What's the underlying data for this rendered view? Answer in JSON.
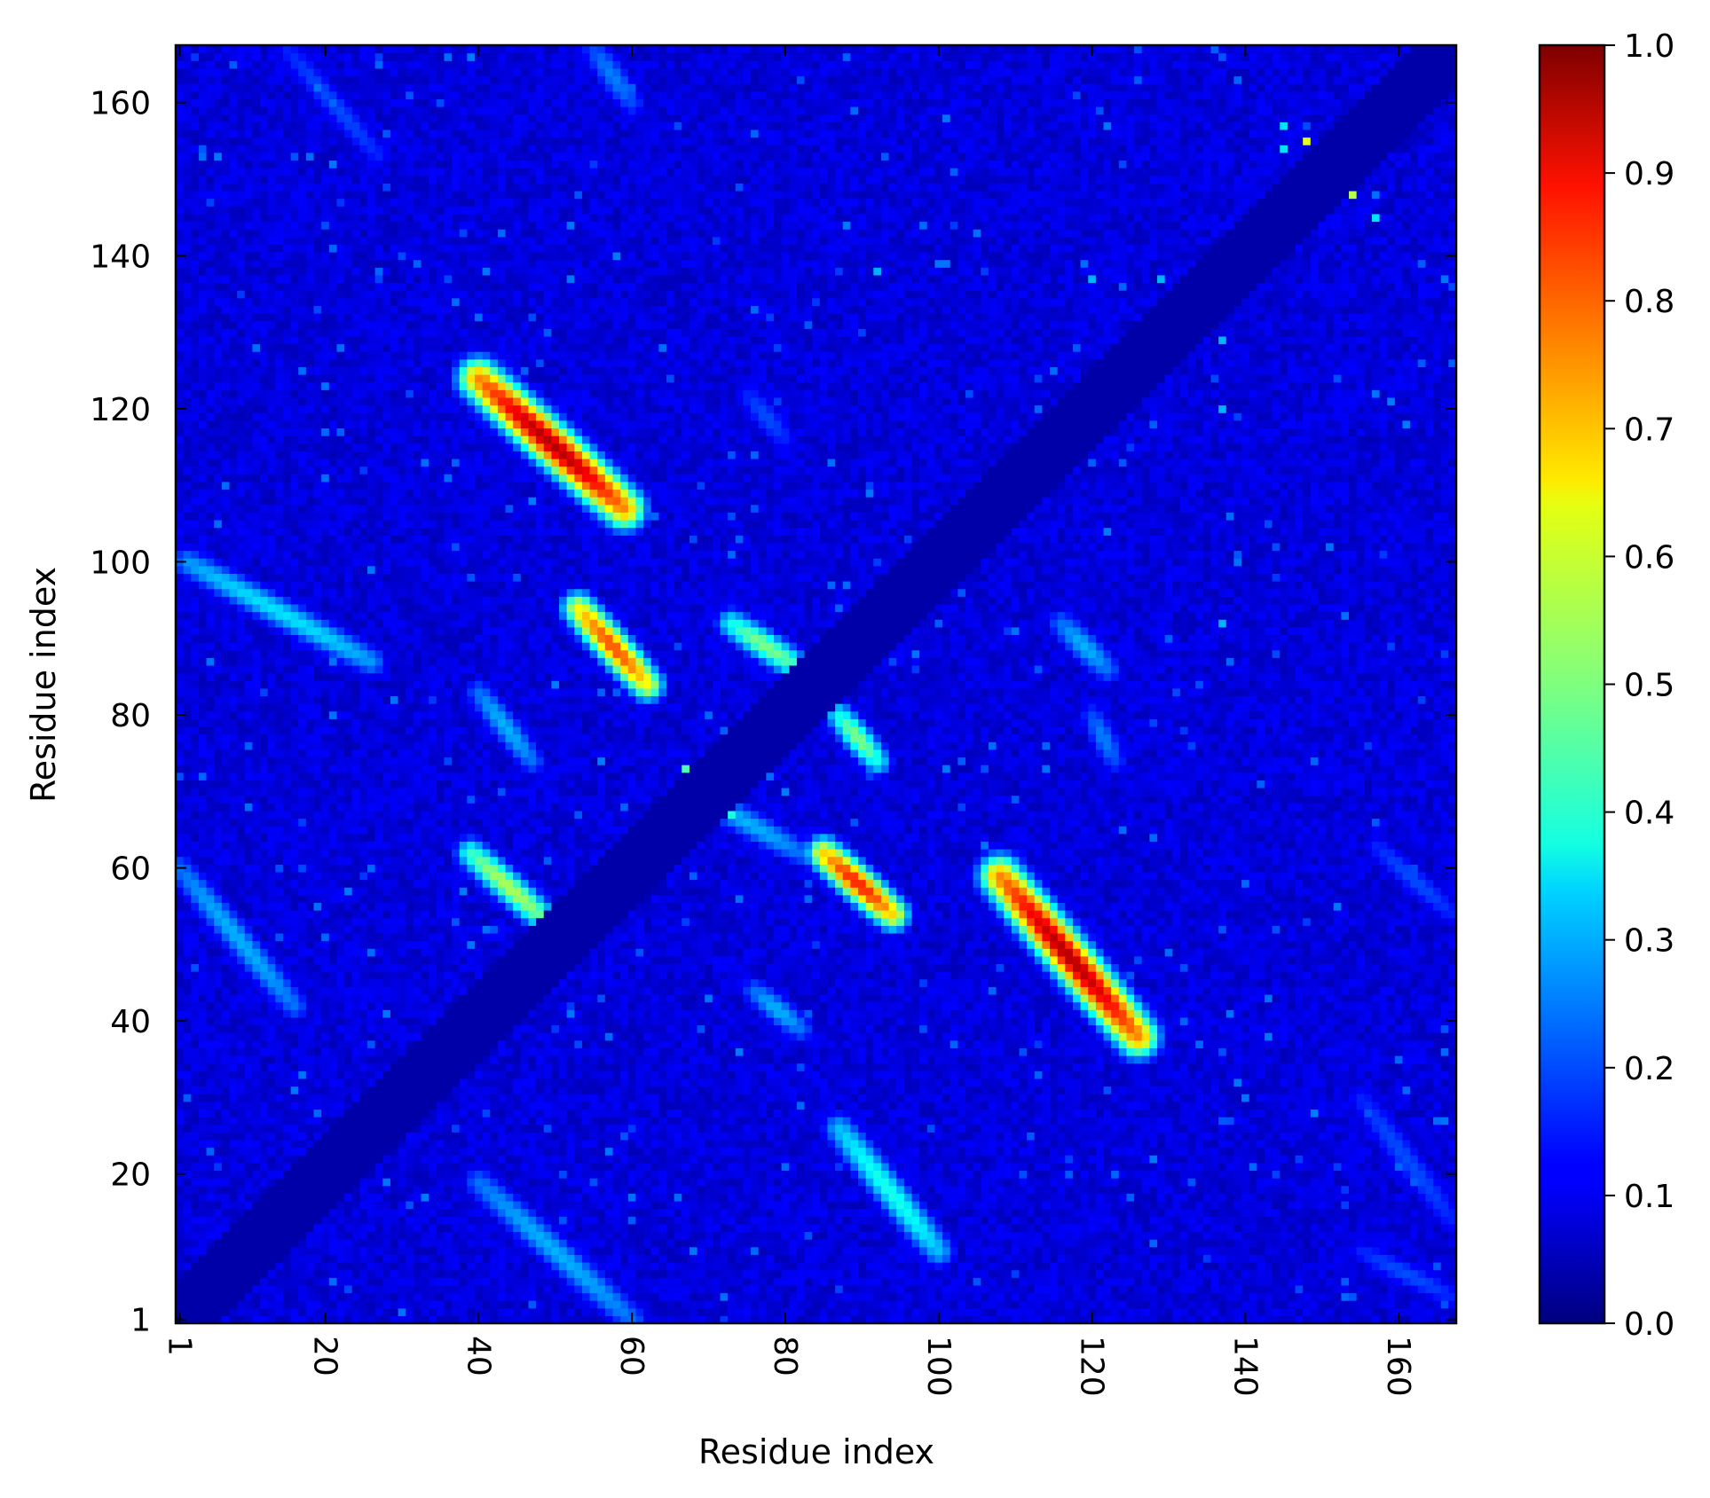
{
  "chart_data": {
    "type": "heatmap",
    "title": "",
    "xlabel": "Residue index",
    "ylabel": "Residue index",
    "x_range": [
      1,
      167
    ],
    "y_range": [
      1,
      167
    ],
    "x_ticks": [
      1,
      20,
      40,
      60,
      80,
      100,
      120,
      140,
      160
    ],
    "y_ticks": [
      1,
      20,
      40,
      60,
      80,
      100,
      120,
      140,
      160
    ],
    "x_tick_rotation": "90° clockwise",
    "colormap": "jet",
    "colorbar": {
      "range": [
        0.0,
        1.0
      ],
      "ticks": [
        "0.0",
        "0.1",
        "0.2",
        "0.3",
        "0.4",
        "0.5",
        "0.6",
        "0.7",
        "0.8",
        "0.9",
        "1.0"
      ],
      "position": "right"
    },
    "symmetric": true,
    "diagonal_band_halfwidth_residues": 5,
    "background_value": 0.1,
    "features": [
      {
        "x_start": 40,
        "y_start": 124,
        "x_end": 59,
        "y_end": 107,
        "peak": 0.95,
        "width": 2
      },
      {
        "x_start": 53,
        "y_start": 94,
        "x_end": 62,
        "y_end": 84,
        "peak": 0.8,
        "width": 1.6
      },
      {
        "x_start": 73,
        "y_start": 92,
        "x_end": 82,
        "y_end": 86,
        "peak": 0.5,
        "width": 1.5
      },
      {
        "x_start": 39,
        "y_start": 62,
        "x_end": 49,
        "y_end": 53,
        "peak": 0.55,
        "width": 1.5
      },
      {
        "x_start": 40,
        "y_start": 83,
        "x_end": 47,
        "y_end": 74,
        "peak": 0.3,
        "width": 1.4
      },
      {
        "x_start": 2,
        "y_start": 100,
        "x_end": 26,
        "y_end": 87,
        "peak": 0.35,
        "width": 1.5
      },
      {
        "x_start": 1,
        "y_start": 60,
        "x_end": 16,
        "y_end": 42,
        "peak": 0.3,
        "width": 1.5
      },
      {
        "x_start": 40,
        "y_start": 19,
        "x_end": 60,
        "y_end": 1,
        "peak": 0.3,
        "width": 1.6
      },
      {
        "x_start": 55,
        "y_start": 167,
        "x_end": 60,
        "y_end": 160,
        "peak": 0.25,
        "width": 1.5
      },
      {
        "x_start": 15,
        "y_start": 167,
        "x_end": 27,
        "y_end": 153,
        "peak": 0.2,
        "width": 1.4
      },
      {
        "x_start": 75,
        "y_start": 122,
        "x_end": 80,
        "y_end": 116,
        "peak": 0.2,
        "width": 1.5
      },
      {
        "x_start": 68,
        "y_start": 70,
        "x_end": 82,
        "y_end": 62,
        "peak": 0.3,
        "width": 1.5
      },
      {
        "x_start": 85,
        "y_start": 62,
        "x_end": 94,
        "y_end": 54,
        "peak": 0.85,
        "width": 1.6
      },
      {
        "x_start": 87,
        "y_start": 80,
        "x_end": 92,
        "y_end": 74,
        "peak": 0.5,
        "width": 1.4
      },
      {
        "x_start": 108,
        "y_start": 59,
        "x_end": 126,
        "y_end": 38,
        "peak": 0.95,
        "width": 2
      },
      {
        "x_start": 76,
        "y_start": 44,
        "x_end": 82,
        "y_end": 39,
        "peak": 0.3,
        "width": 1.4
      },
      {
        "x_start": 87,
        "y_start": 26,
        "x_end": 100,
        "y_end": 10,
        "peak": 0.4,
        "width": 1.6
      },
      {
        "x_start": 116,
        "y_start": 92,
        "x_end": 122,
        "y_end": 86,
        "peak": 0.3,
        "width": 1.5
      },
      {
        "x_start": 120,
        "y_start": 80,
        "x_end": 123,
        "y_end": 74,
        "peak": 0.25,
        "width": 1.4
      },
      {
        "x_start": 157,
        "y_start": 63,
        "x_end": 167,
        "y_end": 54,
        "peak": 0.2,
        "width": 1.4
      },
      {
        "x_start": 155,
        "y_start": 30,
        "x_end": 167,
        "y_end": 14,
        "peak": 0.2,
        "width": 1.6
      },
      {
        "x_start": 155,
        "y_start": 10,
        "x_end": 167,
        "y_end": 4,
        "peak": 0.2,
        "width": 1.4
      }
    ],
    "hotspots": [
      {
        "x": 148,
        "y": 155,
        "value": 0.6
      },
      {
        "x": 154,
        "y": 148,
        "value": 0.55
      },
      {
        "x": 145,
        "y": 157,
        "value": 0.35
      },
      {
        "x": 145,
        "y": 154,
        "value": 0.35
      },
      {
        "x": 157,
        "y": 145,
        "value": 0.35
      },
      {
        "x": 92,
        "y": 138,
        "value": 0.3
      },
      {
        "x": 120,
        "y": 137,
        "value": 0.3
      },
      {
        "x": 129,
        "y": 137,
        "value": 0.3
      },
      {
        "x": 67,
        "y": 73,
        "value": 0.45
      },
      {
        "x": 73,
        "y": 67,
        "value": 0.4
      },
      {
        "x": 137,
        "y": 92,
        "value": 0.3
      },
      {
        "x": 137,
        "y": 120,
        "value": 0.3
      },
      {
        "x": 137,
        "y": 129,
        "value": 0.3
      }
    ]
  }
}
